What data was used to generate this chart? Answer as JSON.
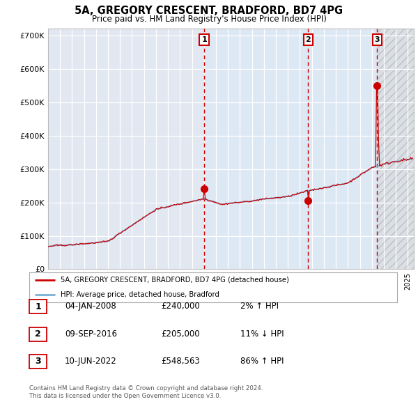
{
  "title": "5A, GREGORY CRESCENT, BRADFORD, BD7 4PG",
  "subtitle": "Price paid vs. HM Land Registry's House Price Index (HPI)",
  "xlim": [
    1995.0,
    2025.5
  ],
  "ylim": [
    0,
    720000
  ],
  "yticks": [
    0,
    100000,
    200000,
    300000,
    400000,
    500000,
    600000,
    700000
  ],
  "ytick_labels": [
    "£0",
    "£100K",
    "£200K",
    "£300K",
    "£400K",
    "£500K",
    "£600K",
    "£700K"
  ],
  "bg_color": "#ffffff",
  "plot_bg_color": "#dde8f5",
  "plot_bg_left": "#f0f0f0",
  "grid_color": "#ffffff",
  "hpi_color": "#7ab0d8",
  "price_color": "#cc0000",
  "vline_color": "#cc0000",
  "sale1_x": 2008.02,
  "sale1_y": 240000,
  "sale2_x": 2016.69,
  "sale2_y": 205000,
  "sale3_x": 2022.44,
  "sale3_y": 548563,
  "legend_label_red": "5A, GREGORY CRESCENT, BRADFORD, BD7 4PG (detached house)",
  "legend_label_blue": "HPI: Average price, detached house, Bradford",
  "table_entries": [
    {
      "num": "1",
      "date": "04-JAN-2008",
      "price": "£240,000",
      "hpi": "2% ↑ HPI"
    },
    {
      "num": "2",
      "date": "09-SEP-2016",
      "price": "£205,000",
      "hpi": "11% ↓ HPI"
    },
    {
      "num": "3",
      "date": "10-JUN-2022",
      "price": "£548,563",
      "hpi": "86% ↑ HPI"
    }
  ],
  "footnote1": "Contains HM Land Registry data © Crown copyright and database right 2024.",
  "footnote2": "This data is licensed under the Open Government Licence v3.0."
}
